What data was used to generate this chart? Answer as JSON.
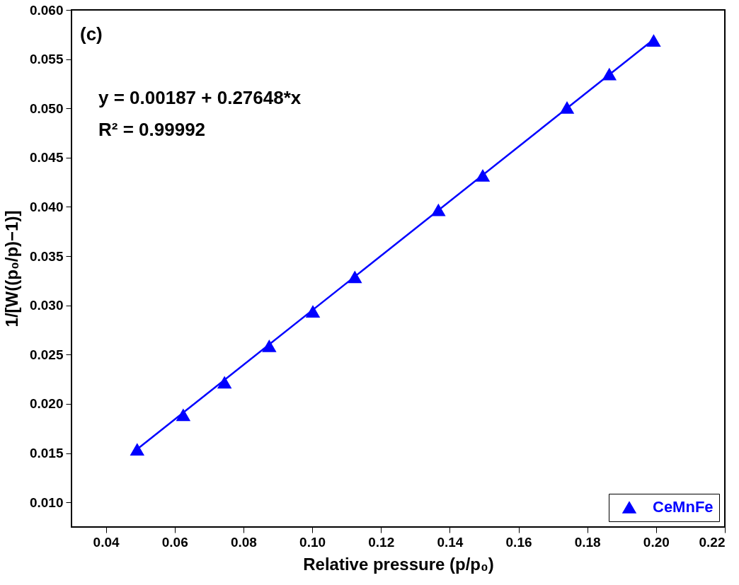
{
  "chart_data": {
    "type": "scatter",
    "xlabel": "Relative pressure  (p/p₀)",
    "ylabel": "1/[W((p₀/p)−1)]",
    "annotations": [
      "(c)",
      "y = 0.00187 + 0.27648*x",
      "R² = 0.99992"
    ],
    "series": [
      {
        "name": "CeMnFe",
        "type": "scatter",
        "color": "#0000ff",
        "marker": "triangle",
        "x": [
          0.0491,
          0.0625,
          0.0745,
          0.0875,
          0.1002,
          0.1124,
          0.1367,
          0.1496,
          0.1741,
          0.1864,
          0.1993
        ],
        "values": [
          0.0154,
          0.0189,
          0.0222,
          0.0259,
          0.0294,
          0.0329,
          0.0397,
          0.0432,
          0.0501,
          0.0535,
          0.0569
        ]
      },
      {
        "type": "line",
        "color": "#0000ff",
        "line_style": "solid",
        "x": [
          0.0491,
          0.1993
        ],
        "values": [
          0.0154,
          0.057
        ]
      }
    ],
    "xlim": [
      0.03,
      0.22
    ],
    "xticks": [
      {
        "value": 0.04,
        "label": "0.04"
      },
      {
        "value": 0.06,
        "label": "0.06"
      },
      {
        "value": 0.08,
        "label": "0.08"
      },
      {
        "value": 0.1,
        "label": "0.10"
      },
      {
        "value": 0.12,
        "label": "0.12"
      },
      {
        "value": 0.14,
        "label": "0.14"
      },
      {
        "value": 0.16,
        "label": "0.16"
      },
      {
        "value": 0.18,
        "label": "0.18"
      },
      {
        "value": 0.2,
        "label": "0.20"
      },
      {
        "value": 0.22,
        "label": "0.22"
      }
    ],
    "ylim": [
      0.0075,
      0.06
    ],
    "yticks": [
      {
        "value": 0.01,
        "label": "0.010"
      },
      {
        "value": 0.015,
        "label": "0.015"
      },
      {
        "value": 0.02,
        "label": "0.020"
      },
      {
        "value": 0.025,
        "label": "0.025"
      },
      {
        "value": 0.03,
        "label": "0.030"
      },
      {
        "value": 0.035,
        "label": "0.035"
      },
      {
        "value": 0.04,
        "label": "0.040"
      },
      {
        "value": 0.045,
        "label": "0.045"
      },
      {
        "value": 0.05,
        "label": "0.050"
      },
      {
        "value": 0.055,
        "label": "0.055"
      },
      {
        "value": 0.06,
        "label": "0.060"
      }
    ],
    "grid": false,
    "legend": "bottom right"
  }
}
